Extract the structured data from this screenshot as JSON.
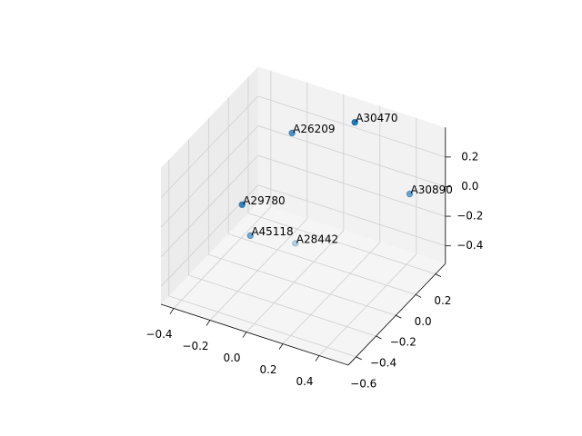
{
  "chart_data": {
    "type": "scatter3d",
    "labels": [
      "A26209",
      "A30470",
      "A30890",
      "A29780",
      "A45118",
      "A28442"
    ],
    "x": [
      -0.18,
      0.1,
      0.38,
      -0.28,
      -0.24,
      -0.08
    ],
    "y": [
      0.11,
      0.23,
      0.27,
      -0.21,
      -0.2,
      -0.04
    ],
    "z": [
      0.2,
      0.3,
      -0.1,
      -0.1,
      -0.3,
      -0.4
    ],
    "color": "#1f77b4",
    "xlim": [
      -0.47,
      0.56
    ],
    "ylim": [
      -0.68,
      0.3
    ],
    "zlim": [
      -0.52,
      0.4
    ],
    "xticks": [
      {
        "value": -0.4,
        "label": "−0.4"
      },
      {
        "value": -0.2,
        "label": "−0.2"
      },
      {
        "value": 0,
        "label": "0.0"
      },
      0.2,
      0.4
    ],
    "yticks": [
      {
        "value": -0.6,
        "label": "−0.6"
      },
      {
        "value": -0.4,
        "label": "−0.4"
      },
      {
        "value": -0.2,
        "label": "−0.2"
      },
      {
        "value": 0,
        "label": "0.0"
      },
      0.2
    ],
    "zticks": [
      {
        "value": -0.4,
        "label": "−0.4"
      },
      {
        "value": -0.2,
        "label": "−0.2"
      },
      {
        "value": 0,
        "label": "0.0"
      },
      0.2
    ],
    "grid": true
  }
}
